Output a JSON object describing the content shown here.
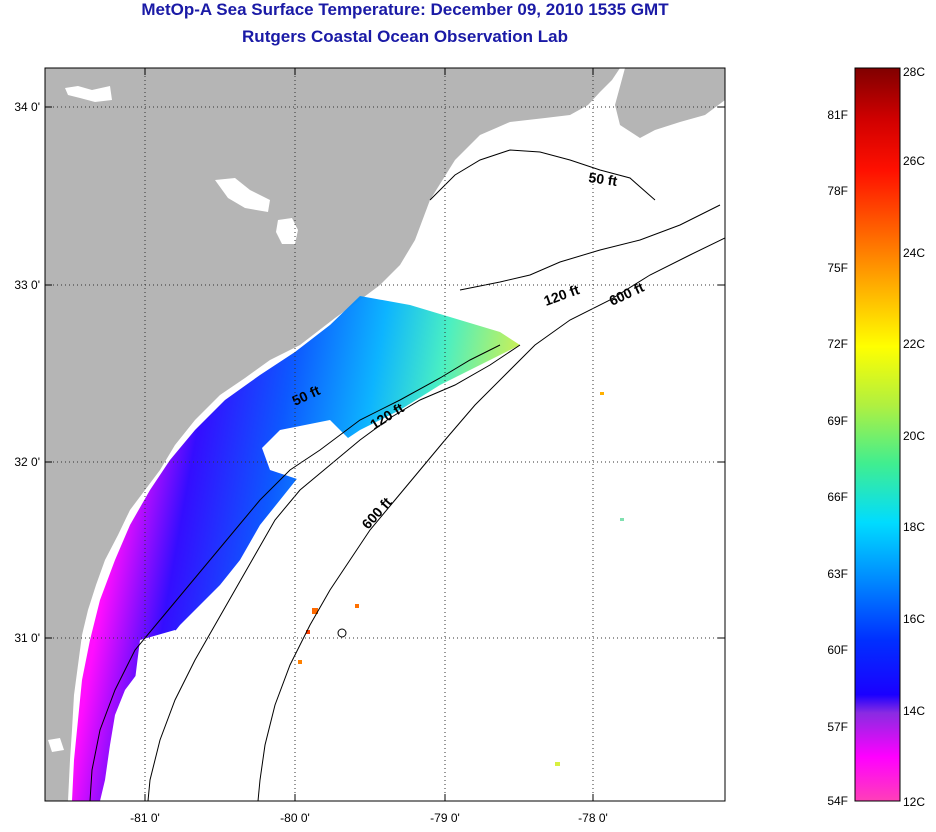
{
  "header": {
    "title_line1": "MetOp-A Sea Surface Temperature:  December 09, 2010 1535 GMT",
    "title_line2": "Rutgers Coastal Ocean Observation Lab"
  },
  "map": {
    "lat_ticks": [
      "34 0'",
      "33 0'",
      "32 0'",
      "31 0'"
    ],
    "lon_ticks": [
      "-81 0'",
      "-80 0'",
      "-79 0'",
      "-78 0'"
    ],
    "contour_labels": {
      "north_50": "50 ft",
      "north_120": "120 ft",
      "north_600": "600 ft",
      "south_50": "50 ft",
      "south_120": "120 ft",
      "south_600": "600 ft"
    },
    "colors": {
      "land": "#b5b5b5",
      "water_no_data": "#ffffff"
    }
  },
  "colorbar": {
    "fahrenheit_labels": [
      "81F",
      "78F",
      "75F",
      "72F",
      "69F",
      "66F",
      "63F",
      "60F",
      "57F",
      "54F"
    ],
    "celsius_labels": [
      "28C",
      "26C",
      "24C",
      "22C",
      "20C",
      "18C",
      "16C",
      "14C",
      "12C"
    ],
    "min_c": 12,
    "max_c": 28
  }
}
